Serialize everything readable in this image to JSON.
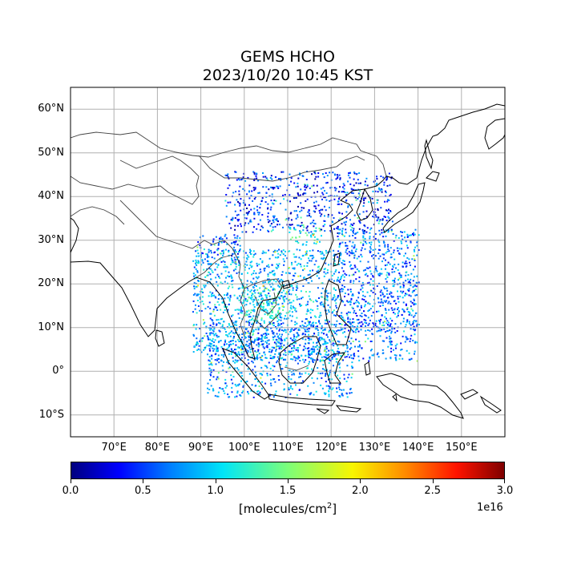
{
  "title_line1": "GEMS HCHO",
  "title_line2": "2023/10/20 10:45 KST",
  "map": {
    "extent": {
      "lon_min": 60,
      "lon_max": 160,
      "lat_min": -15,
      "lat_max": 65
    },
    "lat_ticks": [
      {
        "value": 60,
        "label": "60°N"
      },
      {
        "value": 50,
        "label": "50°N"
      },
      {
        "value": 40,
        "label": "40°N"
      },
      {
        "value": 30,
        "label": "30°N"
      },
      {
        "value": 20,
        "label": "20°N"
      },
      {
        "value": 10,
        "label": "10°N"
      },
      {
        "value": 0,
        "label": "0°"
      },
      {
        "value": -10,
        "label": "10°S"
      }
    ],
    "lon_ticks": [
      {
        "value": 70,
        "label": "70°E"
      },
      {
        "value": 80,
        "label": "80°E"
      },
      {
        "value": 90,
        "label": "90°E"
      },
      {
        "value": 100,
        "label": "100°E"
      },
      {
        "value": 110,
        "label": "110°E"
      },
      {
        "value": 120,
        "label": "120°E"
      },
      {
        "value": 130,
        "label": "130°E"
      },
      {
        "value": 140,
        "label": "140°E"
      },
      {
        "value": 150,
        "label": "150°E"
      }
    ],
    "grid": true
  },
  "colorbar": {
    "min": 0.0,
    "max": 3.0,
    "ticks": [
      "0.0",
      "0.5",
      "1.0",
      "1.5",
      "2.0",
      "2.5",
      "3.0"
    ],
    "unit_text": "[molecules/cm",
    "unit_sup": "2",
    "unit_close": "]",
    "exponent": "1e16",
    "colormap": "jet"
  },
  "colors": {
    "coastline": "#000000",
    "border": "#444444",
    "grid": "#b0b0b0"
  }
}
